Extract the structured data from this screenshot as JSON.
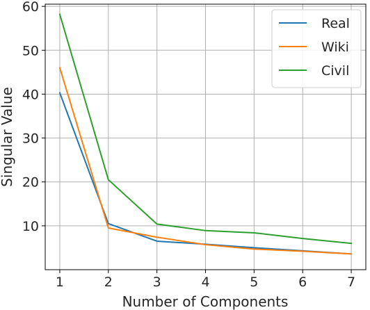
{
  "chart_data": {
    "type": "line",
    "xlabel": "Number of Components",
    "ylabel": "Singular Value",
    "x": [
      1,
      2,
      3,
      4,
      5,
      6,
      7
    ],
    "xlim": [
      0.7,
      7.3
    ],
    "ylim": [
      0,
      60.5
    ],
    "xticks": [
      1,
      2,
      3,
      4,
      5,
      6,
      7
    ],
    "yticks": [
      10,
      20,
      30,
      40,
      50,
      60
    ],
    "grid": true,
    "legend_position": "top-right",
    "series": [
      {
        "name": "Real",
        "color": "#1f77b4",
        "values": [
          40.3,
          10.5,
          6.5,
          5.8,
          5.0,
          4.3,
          3.6
        ]
      },
      {
        "name": "Wiki",
        "color": "#ff7f0e",
        "values": [
          46.0,
          9.5,
          7.4,
          5.7,
          4.7,
          4.2,
          3.6
        ]
      },
      {
        "name": "Civil",
        "color": "#2ca02c",
        "values": [
          58.2,
          20.5,
          10.4,
          8.9,
          8.4,
          7.1,
          6.0
        ]
      }
    ]
  }
}
